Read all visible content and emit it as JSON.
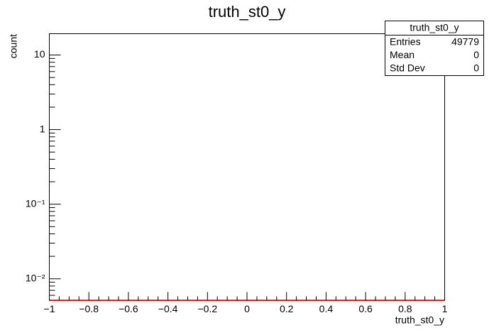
{
  "chart_data": {
    "type": "histogram",
    "title": "truth_st0_y",
    "x_label": "truth_st0_y",
    "y_label": "count",
    "color": "#ff0000",
    "log_y": true,
    "xlim": [
      -1,
      1
    ],
    "xticks": [
      {
        "value": -1,
        "label": "−1"
      },
      {
        "value": -0.8,
        "label": "−0.8"
      },
      {
        "value": -0.6,
        "label": "−0.6"
      },
      {
        "value": -0.4,
        "label": "−0.4"
      },
      {
        "value": -0.2,
        "label": "−0.2"
      },
      0,
      0.2,
      0.4,
      0.6,
      0.8,
      1
    ],
    "ylim": [
      0.0051,
      19.3
    ],
    "yticks": [
      {
        "value": 0.01,
        "label": "10⁻²"
      },
      {
        "value": 0.1,
        "label": "10⁻¹"
      },
      1,
      10
    ],
    "stats": {
      "title": "truth_st0_y",
      "rows": [
        {
          "label": "Entries",
          "value": 49779
        },
        {
          "label": "Mean",
          "value": 0
        },
        {
          "label": "Std Dev",
          "value": 0
        }
      ]
    }
  }
}
